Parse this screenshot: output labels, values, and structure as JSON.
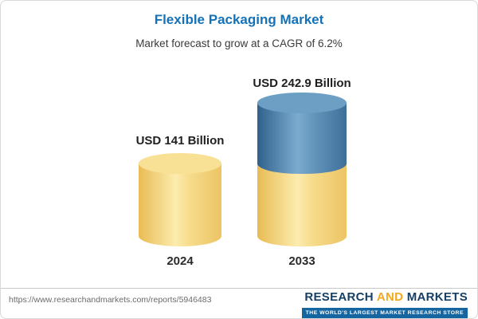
{
  "chart_data": {
    "type": "bar",
    "title": "Flexible Packaging Market",
    "subtitle": "Market forecast to grow at a CAGR of 6.2%",
    "cagr": "6.2%",
    "unit": "USD Billion",
    "categories": [
      "2024",
      "2033"
    ],
    "values": [
      141,
      242.9
    ],
    "value_labels": [
      "USD 141 Billion",
      "USD 242.9 Billion"
    ],
    "ylim": [
      0,
      242.9
    ],
    "grid": "off",
    "legend": "none",
    "colors": {
      "base_yellow": "#f6d87c",
      "growth_blue": "#4379a1",
      "title_blue": "#1472b8"
    }
  },
  "footer": {
    "url": "https://www.researchandmarkets.com/reports/5946483",
    "logo": {
      "word1": "RESEARCH",
      "word2": "AND",
      "word3": "MARKETS",
      "tagline": "THE WORLD'S LARGEST MARKET RESEARCH STORE"
    }
  }
}
